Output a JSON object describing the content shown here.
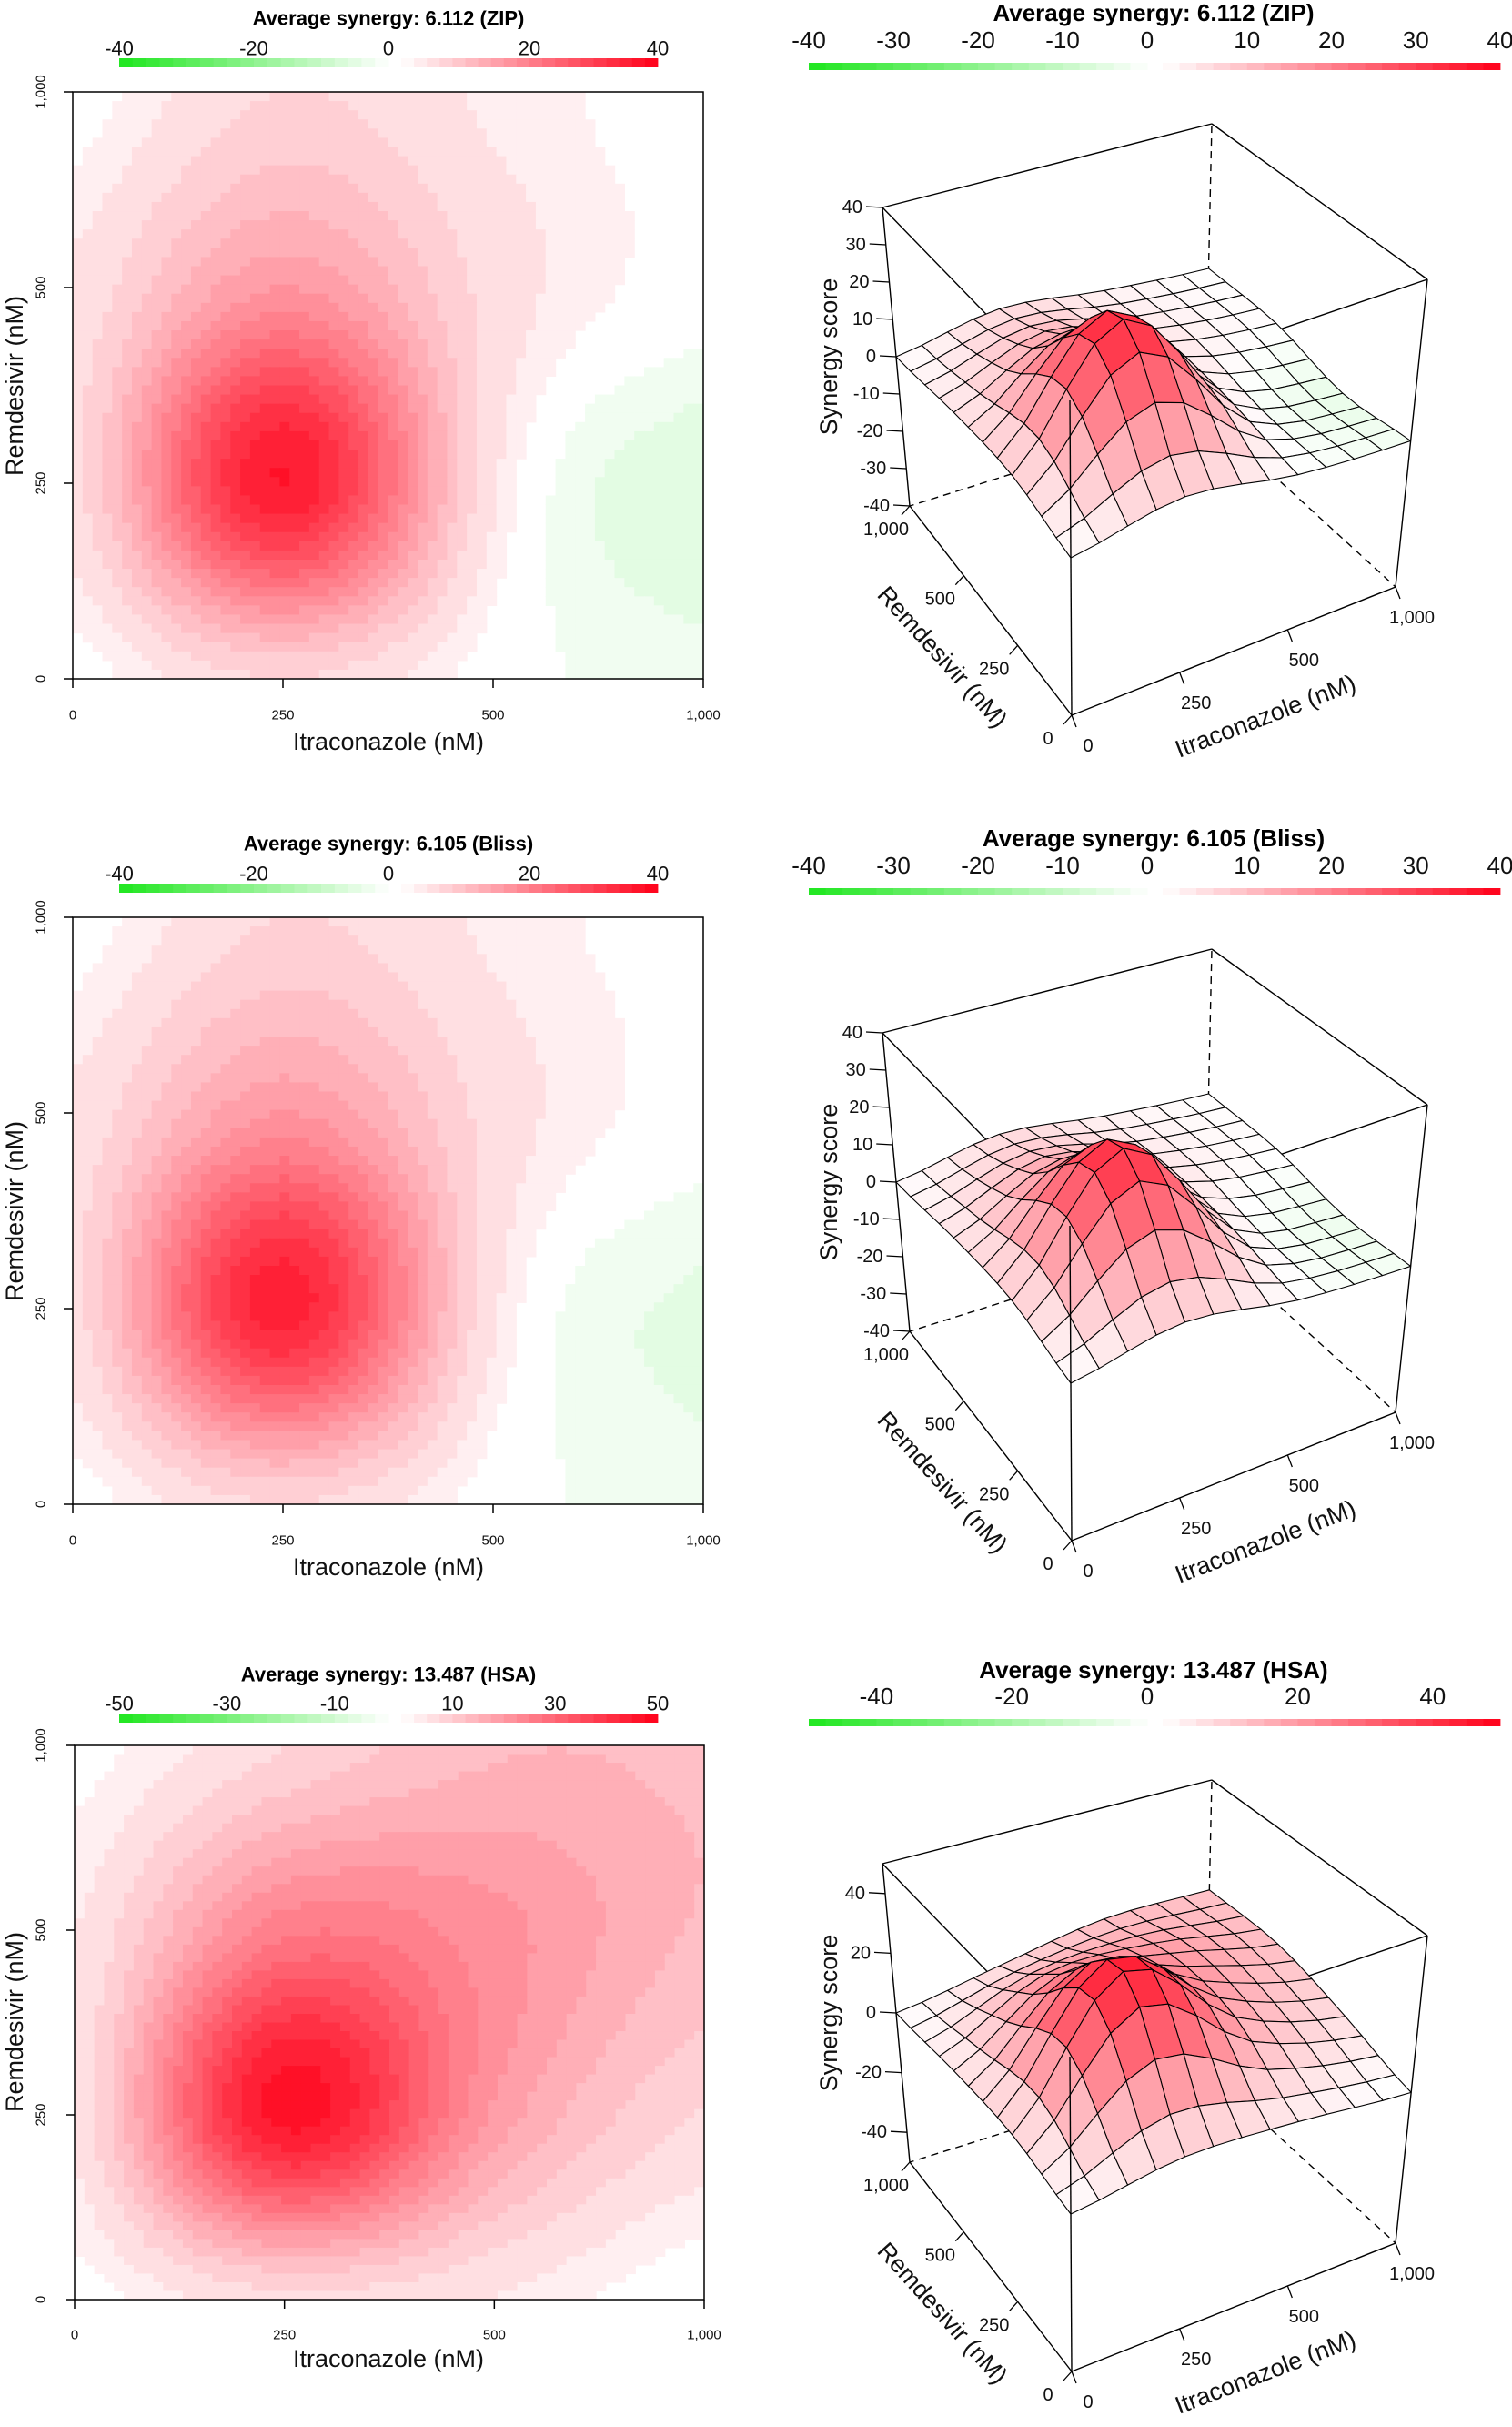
{
  "chart_data": [
    {
      "type": "heatmap",
      "style": "filled contour",
      "title": "Average synergy: 6.112 (ZIP)",
      "xlabel": "Itraconazole (nM)",
      "ylabel": "Remdesivir (nM)",
      "x_doses": [
        0,
        250,
        500,
        1000
      ],
      "x_tick_labels": [
        "0",
        "250",
        "500",
        "1,000"
      ],
      "y_doses": [
        0,
        250,
        500,
        1000
      ],
      "y_tick_labels": [
        "0",
        "250",
        "500",
        "1,000"
      ],
      "z_rows_by_remdesivir": [
        [
          0,
          5,
          0,
          -2
        ],
        [
          4,
          35,
          3,
          -4
        ],
        [
          3,
          15,
          4,
          0
        ],
        [
          0,
          5,
          2,
          0
        ]
      ],
      "colorbar": {
        "range": [
          -40,
          40
        ],
        "ticks": [
          -40,
          -20,
          0,
          20,
          40
        ]
      },
      "colors": {
        "positive": "#ff0019",
        "negative": "#1ee61e",
        "zero": "#ffffff"
      }
    },
    {
      "type": "surface",
      "title": "Average synergy: 6.112 (ZIP)",
      "xlabel": "Itraconazole (nM)",
      "ylabel": "Remdesivir (nM)",
      "zlabel": "Synergy score",
      "x_doses": [
        0,
        250,
        500,
        1000
      ],
      "x_tick_labels": [
        "0",
        "250",
        "500",
        "1,000"
      ],
      "y_doses": [
        0,
        250,
        500,
        1000
      ],
      "y_tick_labels": [
        "0",
        "250",
        "500",
        "1,000"
      ],
      "zlim": [
        -40,
        40
      ],
      "z_ticks": [
        -40,
        -30,
        -20,
        -10,
        0,
        10,
        20,
        30,
        40
      ],
      "z_rows_by_remdesivir": [
        [
          0,
          5,
          0,
          -2
        ],
        [
          4,
          35,
          3,
          -4
        ],
        [
          3,
          15,
          4,
          0
        ],
        [
          0,
          5,
          2,
          0
        ]
      ],
      "colorbar": {
        "range": [
          -40,
          40
        ],
        "ticks": [
          -40,
          -30,
          -20,
          -10,
          0,
          10,
          20,
          30,
          40
        ]
      },
      "colors": {
        "positive": "#ff0019",
        "negative": "#1ee61e",
        "zero": "#ffffff"
      }
    },
    {
      "type": "heatmap",
      "style": "filled contour",
      "title": "Average synergy: 6.105 (Bliss)",
      "xlabel": "Itraconazole (nM)",
      "ylabel": "Remdesivir (nM)",
      "x_doses": [
        0,
        250,
        500,
        1000
      ],
      "x_tick_labels": [
        "0",
        "250",
        "500",
        "1,000"
      ],
      "y_doses": [
        0,
        250,
        500,
        1000
      ],
      "y_tick_labels": [
        "0",
        "250",
        "500",
        "1,000"
      ],
      "z_rows_by_remdesivir": [
        [
          0,
          5,
          0,
          -2
        ],
        [
          4,
          34,
          3,
          -3
        ],
        [
          3,
          15,
          4,
          0
        ],
        [
          0,
          5,
          2,
          0
        ]
      ],
      "colorbar": {
        "range": [
          -40,
          40
        ],
        "ticks": [
          -40,
          -20,
          0,
          20,
          40
        ]
      },
      "colors": {
        "positive": "#ff0019",
        "negative": "#1ee61e",
        "zero": "#ffffff"
      }
    },
    {
      "type": "surface",
      "title": "Average synergy: 6.105 (Bliss)",
      "xlabel": "Itraconazole (nM)",
      "ylabel": "Remdesivir (nM)",
      "zlabel": "Synergy score",
      "x_doses": [
        0,
        250,
        500,
        1000
      ],
      "x_tick_labels": [
        "0",
        "250",
        "500",
        "1,000"
      ],
      "y_doses": [
        0,
        250,
        500,
        1000
      ],
      "y_tick_labels": [
        "0",
        "250",
        "500",
        "1,000"
      ],
      "zlim": [
        -40,
        40
      ],
      "z_ticks": [
        -40,
        -30,
        -20,
        -10,
        0,
        10,
        20,
        30,
        40
      ],
      "z_rows_by_remdesivir": [
        [
          0,
          5,
          0,
          -2
        ],
        [
          4,
          34,
          3,
          -3
        ],
        [
          3,
          15,
          4,
          0
        ],
        [
          0,
          5,
          2,
          0
        ]
      ],
      "colorbar": {
        "range": [
          -40,
          40
        ],
        "ticks": [
          -40,
          -30,
          -20,
          -10,
          0,
          10,
          20,
          30,
          40
        ]
      },
      "colors": {
        "positive": "#ff0019",
        "negative": "#1ee61e",
        "zero": "#ffffff"
      }
    },
    {
      "type": "heatmap",
      "style": "filled contour",
      "title": "Average synergy: 13.487 (HSA)",
      "xlabel": "Itraconazole (nM)",
      "ylabel": "Remdesivir (nM)",
      "x_doses": [
        0,
        250,
        500,
        1000
      ],
      "x_tick_labels": [
        "0",
        "250",
        "500",
        "1,000"
      ],
      "y_doses": [
        0,
        250,
        500,
        1000
      ],
      "y_tick_labels": [
        "0",
        "250",
        "500",
        "1,000"
      ],
      "z_rows_by_remdesivir": [
        [
          0,
          5,
          3,
          -1
        ],
        [
          4,
          45,
          18,
          6
        ],
        [
          3,
          24,
          20,
          12
        ],
        [
          0,
          6,
          12,
          12
        ]
      ],
      "colorbar": {
        "range": [
          -50,
          50
        ],
        "ticks": [
          -50,
          -30,
          -10,
          10,
          30,
          50
        ]
      },
      "colors": {
        "positive": "#ff0019",
        "negative": "#1ee61e",
        "zero": "#ffffff"
      }
    },
    {
      "type": "surface",
      "title": "Average synergy: 13.487 (HSA)",
      "xlabel": "Itraconazole (nM)",
      "ylabel": "Remdesivir (nM)",
      "zlabel": "Synergy score",
      "x_doses": [
        0,
        250,
        500,
        1000
      ],
      "x_tick_labels": [
        "0",
        "250",
        "500",
        "1,000"
      ],
      "y_doses": [
        0,
        250,
        500,
        1000
      ],
      "y_tick_labels": [
        "0",
        "250",
        "500",
        "1,000"
      ],
      "zlim": [
        -50,
        50
      ],
      "z_ticks": [
        -40,
        -20,
        0,
        20,
        40
      ],
      "z_rows_by_remdesivir": [
        [
          0,
          5,
          3,
          -1
        ],
        [
          4,
          45,
          18,
          6
        ],
        [
          3,
          24,
          20,
          12
        ],
        [
          0,
          6,
          12,
          12
        ]
      ],
      "colorbar": {
        "range": [
          -50,
          50
        ],
        "ticks": [
          -40,
          -20,
          0,
          20,
          40
        ]
      },
      "colors": {
        "positive": "#ff0019",
        "negative": "#1ee61e",
        "zero": "#ffffff"
      }
    }
  ]
}
